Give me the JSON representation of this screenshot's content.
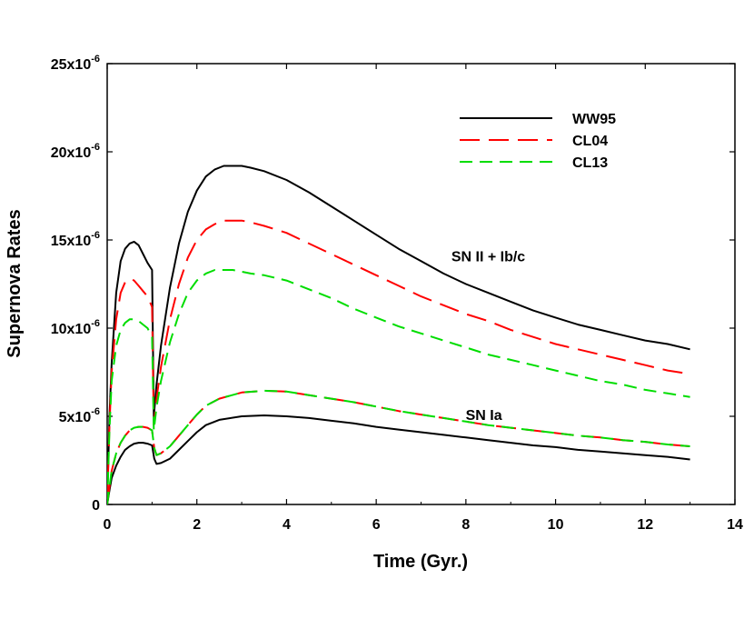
{
  "chart_data": {
    "type": "line",
    "xlabel": "Time (Gyr.)",
    "ylabel": "Supernova Rates",
    "xlim": [
      0,
      14
    ],
    "ylim": [
      0,
      2.5e-05
    ],
    "xticks": [
      0,
      2,
      4,
      6,
      8,
      10,
      12,
      14
    ],
    "yticks": [
      {
        "value": 0,
        "mantissa": "0",
        "exp": ""
      },
      {
        "value": 5e-06,
        "mantissa": "5x10",
        "exp": "-6"
      },
      {
        "value": 1e-05,
        "mantissa": "10x10",
        "exp": "-6"
      },
      {
        "value": 1.5e-05,
        "mantissa": "15x10",
        "exp": "-6"
      },
      {
        "value": 2e-05,
        "mantissa": "20x10",
        "exp": "-6"
      },
      {
        "value": 2.5e-05,
        "mantissa": "25x10",
        "exp": "-6"
      }
    ],
    "grid": false,
    "legend_position": "top-right",
    "legend": [
      {
        "name": "WW95",
        "color": "#000000",
        "dash": "solid"
      },
      {
        "name": "CL04",
        "color": "#ff0000",
        "dash": "long-dash"
      },
      {
        "name": "CL13",
        "color": "#00dd00",
        "dash": "dash"
      }
    ],
    "annotations": [
      {
        "text": "SN II + Ib/c",
        "x": 8.5,
        "y": 1.38e-05
      },
      {
        "text": "SN Ia",
        "x": 8.4,
        "y": 4.8e-06
      }
    ],
    "series": [
      {
        "name": "WW95",
        "group": "SN II + Ib/c",
        "color": "#000000",
        "dash": "solid",
        "x": [
          0,
          0.05,
          0.1,
          0.2,
          0.3,
          0.4,
          0.5,
          0.6,
          0.7,
          0.8,
          0.9,
          1.0,
          1.04,
          1.1,
          1.2,
          1.4,
          1.6,
          1.8,
          2.0,
          2.2,
          2.4,
          2.6,
          2.8,
          3.0,
          3.2,
          3.5,
          4.0,
          4.5,
          5.0,
          5.5,
          6.0,
          6.5,
          7.0,
          7.5,
          8.0,
          8.5,
          9.0,
          9.5,
          10.0,
          10.5,
          11.0,
          11.5,
          12.0,
          12.5,
          13.0
        ],
        "y": [
          0,
          5e-06,
          8e-06,
          1.2e-05,
          1.38e-05,
          1.45e-05,
          1.48e-05,
          1.49e-05,
          1.47e-05,
          1.42e-05,
          1.37e-05,
          1.33e-05,
          5e-06,
          6.8e-06,
          9e-06,
          1.23e-05,
          1.48e-05,
          1.66e-05,
          1.78e-05,
          1.86e-05,
          1.9e-05,
          1.92e-05,
          1.92e-05,
          1.92e-05,
          1.91e-05,
          1.89e-05,
          1.84e-05,
          1.77e-05,
          1.69e-05,
          1.61e-05,
          1.53e-05,
          1.45e-05,
          1.38e-05,
          1.31e-05,
          1.25e-05,
          1.2e-05,
          1.15e-05,
          1.1e-05,
          1.06e-05,
          1.02e-05,
          9.9e-06,
          9.6e-06,
          9.3e-06,
          9.1e-06,
          8.8e-06
        ]
      },
      {
        "name": "CL04",
        "group": "SN II + Ib/c",
        "color": "#ff0000",
        "dash": "long-dash",
        "x": [
          0,
          0.05,
          0.1,
          0.2,
          0.3,
          0.4,
          0.5,
          0.6,
          0.7,
          0.8,
          0.9,
          1.0,
          1.04,
          1.1,
          1.2,
          1.4,
          1.6,
          1.8,
          2.0,
          2.2,
          2.4,
          2.6,
          2.8,
          3.0,
          3.2,
          3.5,
          4.0,
          4.5,
          5.0,
          5.5,
          6.0,
          6.5,
          7.0,
          7.5,
          8.0,
          8.5,
          9.0,
          9.5,
          10.0,
          10.5,
          11.0,
          11.5,
          12.0,
          12.5,
          13.0
        ],
        "y": [
          0,
          4.5e-06,
          7.5e-06,
          1.05e-05,
          1.2e-05,
          1.26e-05,
          1.28e-05,
          1.27e-05,
          1.24e-05,
          1.21e-05,
          1.18e-05,
          1.12e-05,
          4.5e-06,
          6e-06,
          7.8e-06,
          1.05e-05,
          1.25e-05,
          1.4e-05,
          1.5e-05,
          1.56e-05,
          1.59e-05,
          1.61e-05,
          1.61e-05,
          1.61e-05,
          1.6e-05,
          1.58e-05,
          1.54e-05,
          1.48e-05,
          1.42e-05,
          1.36e-05,
          1.3e-05,
          1.24e-05,
          1.18e-05,
          1.13e-05,
          1.08e-05,
          1.04e-05,
          9.9e-06,
          9.5e-06,
          9.1e-06,
          8.8e-06,
          8.5e-06,
          8.2e-06,
          7.9e-06,
          7.6e-06,
          7.4e-06
        ]
      },
      {
        "name": "CL13",
        "group": "SN II + Ib/c",
        "color": "#00dd00",
        "dash": "dash",
        "x": [
          0,
          0.05,
          0.1,
          0.2,
          0.3,
          0.4,
          0.5,
          0.6,
          0.7,
          0.8,
          0.9,
          1.0,
          1.04,
          1.1,
          1.2,
          1.4,
          1.6,
          1.8,
          2.0,
          2.2,
          2.4,
          2.6,
          2.8,
          3.0,
          3.2,
          3.5,
          4.0,
          4.5,
          5.0,
          5.5,
          6.0,
          6.5,
          7.0,
          7.5,
          8.0,
          8.5,
          9.0,
          9.5,
          10.0,
          10.5,
          11.0,
          11.5,
          12.0,
          12.5,
          13.0
        ],
        "y": [
          0,
          4.2e-06,
          7e-06,
          9e-06,
          9.9e-06,
          1.03e-05,
          1.05e-05,
          1.05e-05,
          1.04e-05,
          1.02e-05,
          1e-05,
          9.5e-06,
          4.2e-06,
          5.5e-06,
          7e-06,
          9.2e-06,
          1.08e-05,
          1.2e-05,
          1.27e-05,
          1.31e-05,
          1.33e-05,
          1.33e-05,
          1.33e-05,
          1.32e-05,
          1.31e-05,
          1.3e-05,
          1.27e-05,
          1.22e-05,
          1.17e-05,
          1.11e-05,
          1.06e-05,
          1.01e-05,
          9.7e-06,
          9.3e-06,
          8.9e-06,
          8.5e-06,
          8.2e-06,
          7.9e-06,
          7.6e-06,
          7.3e-06,
          7e-06,
          6.8e-06,
          6.5e-06,
          6.3e-06,
          6.1e-06
        ]
      },
      {
        "name": "WW95",
        "group": "SN Ia",
        "color": "#000000",
        "dash": "solid",
        "x": [
          0,
          0.05,
          0.1,
          0.2,
          0.3,
          0.4,
          0.5,
          0.6,
          0.7,
          0.8,
          0.9,
          1.0,
          1.05,
          1.1,
          1.2,
          1.4,
          1.6,
          1.8,
          2.0,
          2.2,
          2.5,
          3.0,
          3.5,
          4.0,
          4.5,
          5.0,
          5.5,
          6.0,
          6.5,
          7.0,
          7.5,
          8.0,
          8.5,
          9.0,
          9.5,
          10.0,
          10.5,
          11.0,
          11.5,
          12.0,
          12.5,
          13.0
        ],
        "y": [
          0,
          8e-07,
          1.5e-06,
          2.2e-06,
          2.7e-06,
          3.1e-06,
          3.3e-06,
          3.45e-06,
          3.5e-06,
          3.5e-06,
          3.45e-06,
          3.35e-06,
          2.6e-06,
          2.3e-06,
          2.35e-06,
          2.6e-06,
          3.1e-06,
          3.6e-06,
          4.1e-06,
          4.5e-06,
          4.8e-06,
          5e-06,
          5.05e-06,
          5e-06,
          4.9e-06,
          4.75e-06,
          4.6e-06,
          4.4e-06,
          4.25e-06,
          4.1e-06,
          3.95e-06,
          3.8e-06,
          3.65e-06,
          3.5e-06,
          3.35e-06,
          3.25e-06,
          3.1e-06,
          3e-06,
          2.9e-06,
          2.8e-06,
          2.7e-06,
          2.55e-06
        ]
      },
      {
        "name": "CL04",
        "group": "SN Ia",
        "color": "#ff0000",
        "dash": "long-dash",
        "x": [
          0,
          0.05,
          0.1,
          0.2,
          0.3,
          0.4,
          0.5,
          0.6,
          0.7,
          0.8,
          0.9,
          1.0,
          1.05,
          1.1,
          1.2,
          1.4,
          1.6,
          1.8,
          2.0,
          2.2,
          2.5,
          3.0,
          3.5,
          4.0,
          4.5,
          5.0,
          5.5,
          6.0,
          6.5,
          7.0,
          7.5,
          8.0,
          8.5,
          9.0,
          9.5,
          10.0,
          10.5,
          11.0,
          11.5,
          12.0,
          12.5,
          13.0
        ],
        "y": [
          0,
          1e-06,
          1.9e-06,
          2.9e-06,
          3.5e-06,
          3.9e-06,
          4.2e-06,
          4.35e-06,
          4.4e-06,
          4.4e-06,
          4.35e-06,
          4.2e-06,
          3.2e-06,
          2.8e-06,
          2.9e-06,
          3.3e-06,
          3.9e-06,
          4.5e-06,
          5.1e-06,
          5.6e-06,
          6e-06,
          6.35e-06,
          6.45e-06,
          6.4e-06,
          6.2e-06,
          6e-06,
          5.8e-06,
          5.55e-06,
          5.3e-06,
          5.1e-06,
          4.9e-06,
          4.7e-06,
          4.5e-06,
          4.35e-06,
          4.2e-06,
          4.05e-06,
          3.9e-06,
          3.8e-06,
          3.65e-06,
          3.55e-06,
          3.4e-06,
          3.3e-06
        ]
      },
      {
        "name": "CL13",
        "group": "SN Ia",
        "color": "#00dd00",
        "dash": "dash",
        "x": [
          0,
          0.05,
          0.1,
          0.2,
          0.3,
          0.4,
          0.5,
          0.6,
          0.7,
          0.8,
          0.9,
          1.0,
          1.05,
          1.1,
          1.2,
          1.4,
          1.6,
          1.8,
          2.0,
          2.2,
          2.5,
          3.0,
          3.5,
          4.0,
          4.5,
          5.0,
          5.5,
          6.0,
          6.5,
          7.0,
          7.5,
          8.0,
          8.5,
          9.0,
          9.5,
          10.0,
          10.5,
          11.0,
          11.5,
          12.0,
          12.5,
          13.0
        ],
        "y": [
          0,
          1e-06,
          1.9e-06,
          2.9e-06,
          3.5e-06,
          3.9e-06,
          4.2e-06,
          4.35e-06,
          4.4e-06,
          4.4e-06,
          4.35e-06,
          4.2e-06,
          3.2e-06,
          2.8e-06,
          2.9e-06,
          3.3e-06,
          3.9e-06,
          4.5e-06,
          5.1e-06,
          5.6e-06,
          6e-06,
          6.35e-06,
          6.45e-06,
          6.4e-06,
          6.2e-06,
          6e-06,
          5.8e-06,
          5.55e-06,
          5.3e-06,
          5.1e-06,
          4.9e-06,
          4.7e-06,
          4.5e-06,
          4.35e-06,
          4.2e-06,
          4.05e-06,
          3.9e-06,
          3.8e-06,
          3.65e-06,
          3.55e-06,
          3.4e-06,
          3.3e-06
        ]
      }
    ]
  }
}
